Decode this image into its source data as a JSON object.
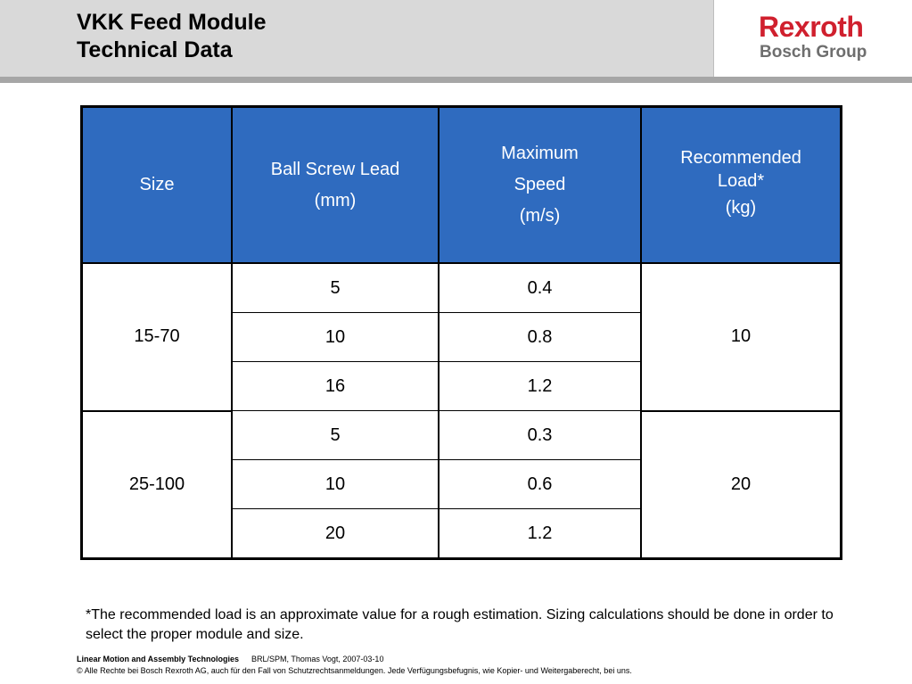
{
  "header": {
    "title_line1": "VKK Feed Module",
    "title_line2": "Technical Data"
  },
  "logo": {
    "line1": "Rexroth",
    "line2": "Bosch Group",
    "brand_color": "#d0202e"
  },
  "table": {
    "header_color": "#2f6bbf",
    "columns": [
      {
        "lines": [
          "Size"
        ]
      },
      {
        "lines": [
          "Ball Screw Lead",
          "(mm)"
        ]
      },
      {
        "lines": [
          "Maximum",
          "Speed",
          "(m/s)"
        ]
      },
      {
        "lines": [
          "Recommended Load*",
          "(kg)"
        ]
      }
    ],
    "groups": [
      {
        "size": "15-70",
        "load": "10",
        "rows": [
          {
            "lead": "5",
            "speed": "0.4"
          },
          {
            "lead": "10",
            "speed": "0.8"
          },
          {
            "lead": "16",
            "speed": "1.2"
          }
        ]
      },
      {
        "size": "25-100",
        "load": "20",
        "rows": [
          {
            "lead": "5",
            "speed": "0.3"
          },
          {
            "lead": "10",
            "speed": "0.6"
          },
          {
            "lead": "20",
            "speed": "1.2"
          }
        ]
      }
    ]
  },
  "footnote": "*The recommended load is an approximate value for a rough estimation. Sizing calculations should be done in order to select the proper module and size.",
  "footer": {
    "org": "Linear Motion and Assembly Technologies",
    "ref": "BRL/SPM, Thomas Vogt, 2007-03-10",
    "copyright": "© Alle Rechte bei Bosch Rexroth AG, auch für den Fall von Schutzrechtsanmeldungen. Jede Verfügungsbefugnis, wie Kopier- und Weitergaberecht, bei uns."
  }
}
